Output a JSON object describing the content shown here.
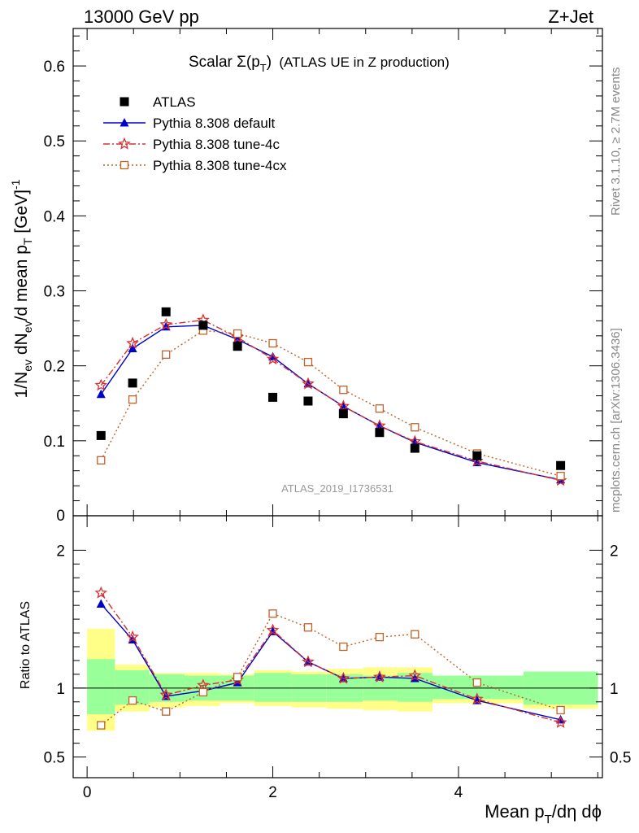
{
  "header": {
    "left": "13000 GeV pp",
    "right": "Z+Jet"
  },
  "title": {
    "prefix": "Scalar Σ(p",
    "sub": "T",
    "suffix": ")",
    "rest": "(ATLAS UE in Z production)"
  },
  "side": {
    "rivet": "Rivet 3.1.10, ≥ 2.7M events",
    "mcplots": "mcplots.cern.ch [arXiv:1306.3436]"
  },
  "watermark": "ATLAS_2019_I1736531",
  "ylabel_top": "1/N_ev dN_ev/d mean p_T [GeV]^-1",
  "ylabel_bottom": "Ratio to ATLAS",
  "xlabel": "Mean p_T/dη dϕ",
  "legend": [
    {
      "key": "atlas",
      "label": "ATLAS"
    },
    {
      "key": "default",
      "label": "Pythia 8.308 default"
    },
    {
      "key": "tune4c",
      "label": "Pythia 8.308 tune-4c"
    },
    {
      "key": "tune4cx",
      "label": "Pythia 8.308 tune-4cx"
    }
  ],
  "colors": {
    "data": "#000000",
    "default": "#0000cc",
    "tune4c": "#d93030",
    "tune4cx": "#c0622a",
    "band_inner": "#99ff99",
    "band_outer": "#ffff88"
  },
  "chart_data": [
    {
      "type": "scatter",
      "panel": "main",
      "xlim": [
        -0.15,
        5.55
      ],
      "ylim": [
        0,
        0.65
      ],
      "yticks": [
        0.1,
        0.2,
        0.3,
        0.4,
        0.5,
        0.6
      ],
      "ytick_labels": [
        "0.1",
        "0.2",
        "0.3",
        "0.4",
        "0.5",
        "0.6"
      ],
      "bottom_label": "0",
      "x": [
        0.15,
        0.49,
        0.85,
        1.25,
        1.62,
        2.0,
        2.38,
        2.76,
        3.15,
        3.53,
        4.2,
        5.1
      ],
      "series": [
        {
          "name": "ATLAS",
          "values": [
            0.107,
            0.177,
            0.272,
            0.254,
            0.226,
            0.158,
            0.153,
            0.136,
            0.111,
            0.09,
            0.08,
            0.067
          ]
        },
        {
          "name": "Pythia 8.308 default",
          "values": [
            0.162,
            0.223,
            0.252,
            0.254,
            0.235,
            0.212,
            0.176,
            0.146,
            0.12,
            0.098,
            0.071,
            0.048
          ]
        },
        {
          "name": "Pythia 8.308 tune-4c",
          "values": [
            0.174,
            0.23,
            0.255,
            0.261,
            0.238,
            0.209,
            0.176,
            0.146,
            0.12,
            0.099,
            0.073,
            0.047
          ]
        },
        {
          "name": "Pythia 8.308 tune-4cx",
          "values": [
            0.074,
            0.155,
            0.215,
            0.247,
            0.243,
            0.23,
            0.205,
            0.168,
            0.143,
            0.118,
            0.083,
            0.053
          ]
        }
      ]
    },
    {
      "type": "line",
      "panel": "ratio",
      "xlim": [
        -0.15,
        5.55
      ],
      "ylim": [
        0.35,
        2.25
      ],
      "yticks": [
        0.5,
        1,
        2
      ],
      "ytick_labels": [
        "0.5",
        "1",
        "2"
      ],
      "xticks": [
        0,
        2,
        4
      ],
      "xtick_labels": [
        "0",
        "2",
        "4"
      ],
      "bins": [
        [
          0.0,
          0.3
        ],
        [
          0.3,
          0.67
        ],
        [
          0.67,
          1.05
        ],
        [
          1.05,
          1.43
        ],
        [
          1.43,
          1.8
        ],
        [
          1.8,
          2.2
        ],
        [
          2.2,
          2.58
        ],
        [
          2.58,
          2.97
        ],
        [
          2.97,
          3.34
        ],
        [
          3.34,
          3.72
        ],
        [
          3.72,
          4.7
        ],
        [
          4.7,
          5.5
        ]
      ],
      "band_inner": [
        [
          0.81,
          1.21
        ],
        [
          0.88,
          1.13
        ],
        [
          0.9,
          1.1
        ],
        [
          0.91,
          1.09
        ],
        [
          0.91,
          1.09
        ],
        [
          0.9,
          1.11
        ],
        [
          0.9,
          1.1
        ],
        [
          0.9,
          1.1
        ],
        [
          0.91,
          1.09
        ],
        [
          0.9,
          1.11
        ],
        [
          0.92,
          1.09
        ],
        [
          0.88,
          1.12
        ]
      ],
      "band_outer": [
        [
          0.69,
          1.43
        ],
        [
          0.83,
          1.17
        ],
        [
          0.86,
          1.11
        ],
        [
          0.87,
          1.11
        ],
        [
          0.89,
          1.1
        ],
        [
          0.87,
          1.13
        ],
        [
          0.86,
          1.12
        ],
        [
          0.85,
          1.14
        ],
        [
          0.84,
          1.15
        ],
        [
          0.83,
          1.15
        ],
        [
          0.89,
          1.08
        ],
        [
          0.85,
          1.12
        ]
      ],
      "x": [
        0.15,
        0.49,
        0.85,
        1.25,
        1.62,
        2.0,
        2.38,
        2.76,
        3.15,
        3.53,
        4.2,
        5.1
      ],
      "series": [
        {
          "name": "Pythia 8.308 default",
          "values": [
            1.61,
            1.35,
            0.94,
            0.98,
            1.04,
            1.41,
            1.19,
            1.07,
            1.08,
            1.07,
            0.91,
            0.77
          ]
        },
        {
          "name": "Pythia 8.308 tune-4c",
          "values": [
            1.69,
            1.37,
            0.95,
            1.02,
            1.06,
            1.42,
            1.19,
            1.07,
            1.08,
            1.09,
            0.92,
            0.75
          ]
        },
        {
          "name": "Pythia 8.308 tune-4cx",
          "values": [
            0.73,
            0.91,
            0.83,
            0.97,
            1.08,
            1.54,
            1.44,
            1.3,
            1.37,
            1.39,
            1.04,
            0.84
          ]
        }
      ]
    }
  ]
}
